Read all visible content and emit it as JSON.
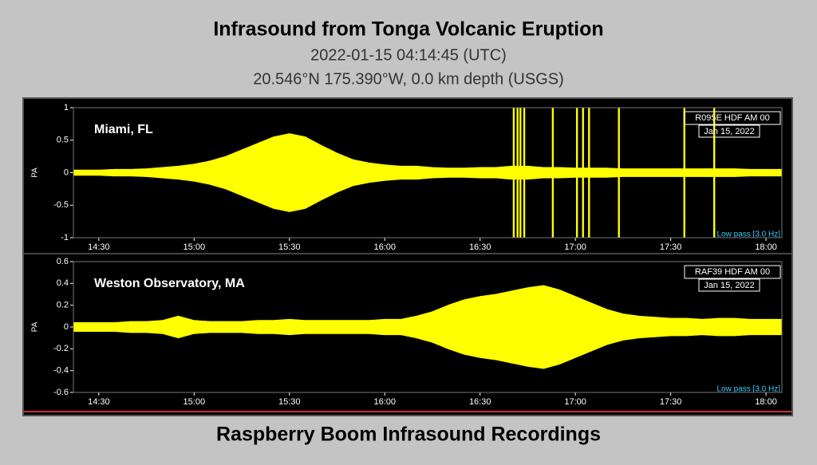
{
  "header": {
    "title": "Infrasound from Tonga Volcanic Eruption",
    "subtitle_1": "2022-01-15 04:14:45 (UTC)",
    "subtitle_2": "20.546°N  175.390°W, 0.0 km depth (USGS)"
  },
  "footer": "Raspberry Boom Infrasound Recordings",
  "chart_data": [
    {
      "type": "envelope",
      "station": "Miami, FL",
      "stamp_1": "R095E HDF AM 00",
      "stamp_2": "Jan 15, 2022",
      "filter": "Low pass [3.0 Hz]",
      "y_label": "PA",
      "color": "#ffff00",
      "xlim": [
        862,
        1085
      ],
      "ylim": [
        -1,
        1
      ],
      "yticks": [
        -1,
        -0.5,
        0,
        0.5,
        1
      ],
      "xticks": [
        {
          "value": 870,
          "label": "14:30"
        },
        {
          "value": 900,
          "label": "15:00"
        },
        {
          "value": 930,
          "label": "15:30"
        },
        {
          "value": 960,
          "label": "16:00"
        },
        {
          "value": 990,
          "label": "16:30"
        },
        {
          "value": 1020,
          "label": "17:00"
        },
        {
          "value": 1050,
          "label": "17:30"
        },
        {
          "value": 1080,
          "label": "18:00"
        }
      ],
      "x": [
        862,
        865,
        870,
        875,
        880,
        885,
        890,
        895,
        900,
        905,
        910,
        915,
        920,
        925,
        930,
        935,
        940,
        945,
        950,
        955,
        960,
        965,
        970,
        975,
        980,
        985,
        990,
        995,
        1000,
        1005,
        1010,
        1015,
        1020,
        1025,
        1030,
        1035,
        1040,
        1045,
        1050,
        1055,
        1060,
        1065,
        1070,
        1075,
        1080,
        1085
      ],
      "values": [
        0.04,
        0.04,
        0.04,
        0.05,
        0.05,
        0.06,
        0.08,
        0.1,
        0.13,
        0.18,
        0.25,
        0.35,
        0.45,
        0.55,
        0.6,
        0.55,
        0.42,
        0.3,
        0.2,
        0.15,
        0.12,
        0.1,
        0.1,
        0.08,
        0.07,
        0.07,
        0.08,
        0.08,
        0.1,
        0.1,
        0.08,
        0.08,
        0.07,
        0.07,
        0.07,
        0.06,
        0.06,
        0.06,
        0.06,
        0.06,
        0.06,
        0.06,
        0.06,
        0.05,
        0.05,
        0.05
      ],
      "spikes": [
        1000.6,
        1001.8,
        1002.7,
        1003.9,
        1012.9,
        1020.5,
        1022.4,
        1024.3,
        1033.7,
        1054.3,
        1063.7
      ]
    },
    {
      "type": "envelope",
      "station": "Weston Observatory, MA",
      "stamp_1": "RAF39 HDF AM 00",
      "stamp_2": "Jan 15, 2022",
      "filter": "Low pass [3.0 Hz]",
      "y_label": "PA",
      "color": "#ffff00",
      "xlim": [
        862,
        1085
      ],
      "ylim": [
        -0.6,
        0.6
      ],
      "yticks": [
        -0.6,
        -0.4,
        -0.2,
        0,
        0.2,
        0.4,
        0.6
      ],
      "xticks": [
        {
          "value": 870,
          "label": "14:30"
        },
        {
          "value": 900,
          "label": "15:00"
        },
        {
          "value": 930,
          "label": "15:30"
        },
        {
          "value": 960,
          "label": "16:00"
        },
        {
          "value": 990,
          "label": "16:30"
        },
        {
          "value": 1020,
          "label": "17:00"
        },
        {
          "value": 1050,
          "label": "17:30"
        },
        {
          "value": 1080,
          "label": "18:00"
        }
      ],
      "x": [
        862,
        865,
        870,
        875,
        880,
        885,
        890,
        895,
        900,
        905,
        910,
        915,
        920,
        925,
        930,
        935,
        940,
        945,
        950,
        955,
        960,
        965,
        970,
        975,
        980,
        985,
        990,
        995,
        1000,
        1005,
        1010,
        1015,
        1020,
        1025,
        1030,
        1035,
        1040,
        1045,
        1050,
        1055,
        1060,
        1065,
        1070,
        1075,
        1080,
        1085
      ],
      "values": [
        0.04,
        0.04,
        0.04,
        0.04,
        0.05,
        0.05,
        0.06,
        0.1,
        0.06,
        0.05,
        0.05,
        0.05,
        0.06,
        0.06,
        0.07,
        0.06,
        0.06,
        0.06,
        0.06,
        0.06,
        0.07,
        0.07,
        0.1,
        0.14,
        0.2,
        0.25,
        0.28,
        0.3,
        0.33,
        0.36,
        0.38,
        0.34,
        0.28,
        0.22,
        0.16,
        0.12,
        0.1,
        0.09,
        0.08,
        0.08,
        0.07,
        0.08,
        0.08,
        0.07,
        0.07,
        0.07
      ]
    }
  ]
}
